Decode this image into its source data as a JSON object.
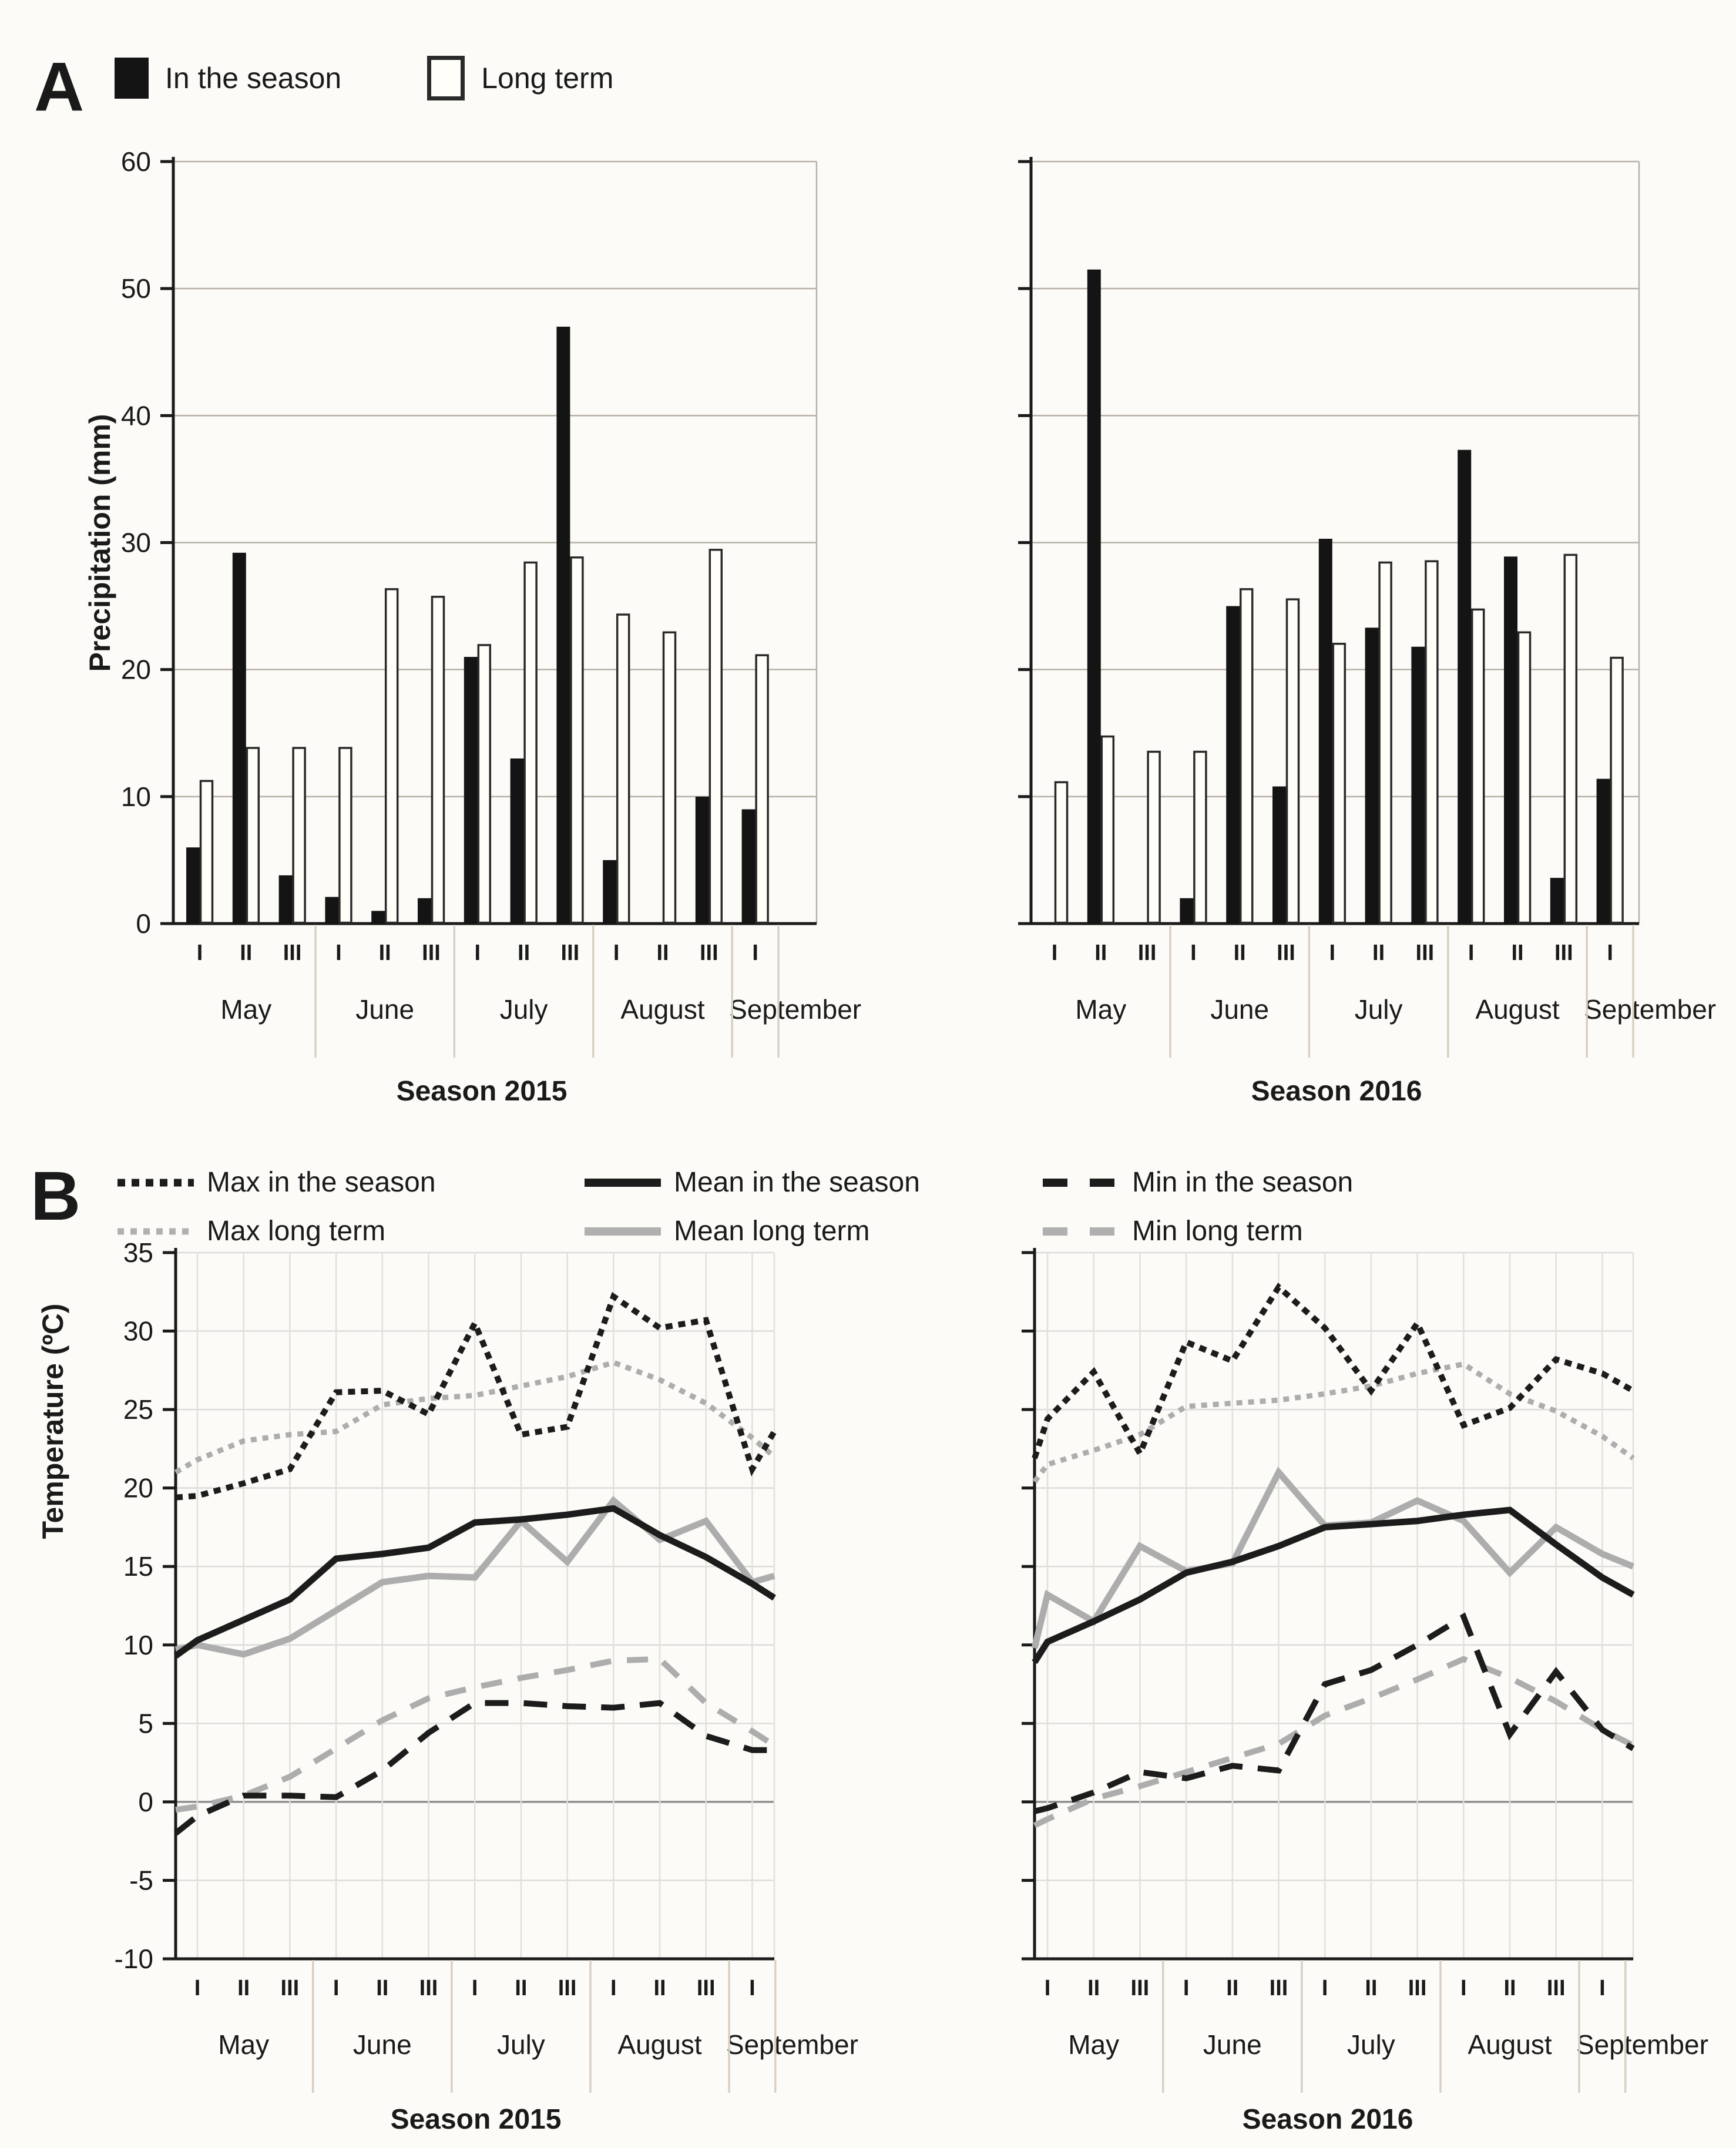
{
  "figure": {
    "panel_a_letter": "A",
    "panel_b_letter": "B"
  },
  "panel_a": {
    "legend": {
      "in_season": "In the season",
      "long_term": "Long term"
    },
    "ylabel": "Precipitation (mm)"
  },
  "panel_b": {
    "legend": {
      "max_season": "Max in the season",
      "mean_season": "Mean in the season",
      "min_season": "Min in the season",
      "max_longterm": "Max long term",
      "mean_longterm": "Mean long term",
      "min_longterm": "Min long term"
    },
    "ylabel": "Temperature (ºC)"
  },
  "chart_data": [
    {
      "type": "bar",
      "panel": "A",
      "title": "Season 2015",
      "ylabel": "Precipitation (mm)",
      "ylim": [
        0,
        60
      ],
      "yticks": [
        0,
        10,
        20,
        30,
        40,
        50,
        60
      ],
      "grid": "horizontal",
      "legend_position": "top-left",
      "categories": [
        "I",
        "II",
        "III",
        "I",
        "II",
        "III",
        "I",
        "II",
        "III",
        "I",
        "II",
        "III",
        "I"
      ],
      "months": [
        {
          "label": "May",
          "decades": 3
        },
        {
          "label": "June",
          "decades": 3
        },
        {
          "label": "July",
          "decades": 3
        },
        {
          "label": "August",
          "decades": 3
        },
        {
          "label": "September",
          "decades": 1
        }
      ],
      "series": [
        {
          "name": "In the season",
          "style": "filled-black",
          "values": [
            6,
            29.2,
            3.8,
            2.1,
            1,
            2,
            21,
            13,
            47,
            5,
            0,
            10,
            9
          ]
        },
        {
          "name": "Long term",
          "style": "outlined-white",
          "values": [
            11.3,
            13.9,
            13.9,
            13.9,
            26.4,
            25.8,
            22,
            28.5,
            28.9,
            24.4,
            23,
            29.5,
            21.2
          ]
        }
      ]
    },
    {
      "type": "bar",
      "panel": "A",
      "title": "Season 2016",
      "ylabel": "Precipitation (mm)",
      "ylim": [
        0,
        60
      ],
      "yticks": [
        0,
        10,
        20,
        30,
        40,
        50,
        60
      ],
      "grid": "horizontal",
      "categories": [
        "I",
        "II",
        "III",
        "I",
        "II",
        "III",
        "I",
        "II",
        "III",
        "I",
        "II",
        "III",
        "I"
      ],
      "months": [
        {
          "label": "May",
          "decades": 3
        },
        {
          "label": "June",
          "decades": 3
        },
        {
          "label": "July",
          "decades": 3
        },
        {
          "label": "August",
          "decades": 3
        },
        {
          "label": "September",
          "decades": 1
        }
      ],
      "series": [
        {
          "name": "In the season",
          "style": "filled-black",
          "values": [
            0,
            51.5,
            0,
            2,
            25,
            10.8,
            30.3,
            23.3,
            21.8,
            37.3,
            28.9,
            3.6,
            11.4
          ]
        },
        {
          "name": "Long term",
          "style": "outlined-white",
          "values": [
            11.2,
            14.8,
            13.6,
            13.6,
            26.4,
            25.6,
            22.1,
            28.5,
            28.6,
            24.8,
            23,
            29.1,
            21
          ]
        }
      ]
    },
    {
      "type": "line",
      "panel": "B",
      "title": "Season 2015",
      "ylabel": "Temperature (ºC)",
      "ylim": [
        -10,
        35
      ],
      "yticks": [
        -10,
        -5,
        0,
        5,
        10,
        15,
        20,
        25,
        30,
        35
      ],
      "grid": "both",
      "categories": [
        "I",
        "II",
        "III",
        "I",
        "II",
        "III",
        "I",
        "II",
        "III",
        "I",
        "II",
        "III",
        "I"
      ],
      "months": [
        {
          "label": "May",
          "decades": 3
        },
        {
          "label": "June",
          "decades": 3
        },
        {
          "label": "July",
          "decades": 3
        },
        {
          "label": "August",
          "decades": 3
        },
        {
          "label": "September",
          "decades": 1
        }
      ],
      "series": [
        {
          "name": "Max long term",
          "color": "gray",
          "style": "dotted",
          "edge_start": 21.0,
          "edge_end": 22.0,
          "values": [
            21.8,
            23.0,
            23.4,
            23.6,
            25.3,
            25.7,
            25.9,
            26.5,
            27.1,
            28.0,
            26.9,
            25.4,
            23.2
          ]
        },
        {
          "name": "Mean long term",
          "color": "gray",
          "style": "solid",
          "edge_start": 9.7,
          "edge_end": 14.4,
          "values": [
            10.0,
            9.4,
            10.4,
            12.2,
            14.0,
            14.4,
            14.3,
            17.9,
            15.3,
            19.2,
            16.7,
            17.9,
            14.0
          ]
        },
        {
          "name": "Min long term",
          "color": "gray",
          "style": "dashed",
          "edge_start": -0.5,
          "edge_end": 3.6,
          "values": [
            -0.3,
            0.4,
            1.6,
            3.4,
            5.2,
            6.6,
            7.3,
            7.9,
            8.4,
            9.0,
            9.1,
            6.3,
            4.5
          ]
        },
        {
          "name": "Max in the season",
          "color": "black",
          "style": "dotted",
          "edge_start": 19.4,
          "edge_end": 23.6,
          "values": [
            19.5,
            20.3,
            21.2,
            26.1,
            26.2,
            24.7,
            30.5,
            23.4,
            23.9,
            32.2,
            30.2,
            30.7,
            21.2
          ]
        },
        {
          "name": "Mean in the season",
          "color": "black",
          "style": "solid",
          "edge_start": 9.3,
          "edge_end": 13.0,
          "values": [
            10.3,
            11.6,
            12.9,
            15.5,
            15.8,
            16.2,
            17.8,
            18.0,
            18.3,
            18.7,
            17.0,
            15.6,
            13.9
          ]
        },
        {
          "name": "Min in the season",
          "color": "black",
          "style": "dashed",
          "edge_start": -2.0,
          "edge_end": 3.3,
          "values": [
            -0.9,
            0.4,
            0.4,
            0.3,
            2.0,
            4.4,
            6.3,
            6.3,
            6.1,
            6.0,
            6.3,
            4.2,
            3.3
          ]
        }
      ]
    },
    {
      "type": "line",
      "panel": "B",
      "title": "Season 2016",
      "ylabel": "Temperature (ºC)",
      "ylim": [
        -10,
        35
      ],
      "yticks": [
        -10,
        -5,
        0,
        5,
        10,
        15,
        20,
        25,
        30,
        35
      ],
      "grid": "both",
      "categories": [
        "I",
        "II",
        "III",
        "I",
        "II",
        "III",
        "I",
        "II",
        "III",
        "I",
        "II",
        "III",
        "I"
      ],
      "months": [
        {
          "label": "May",
          "decades": 3
        },
        {
          "label": "June",
          "decades": 3
        },
        {
          "label": "July",
          "decades": 3
        },
        {
          "label": "August",
          "decades": 3
        },
        {
          "label": "September",
          "decades": 1
        }
      ],
      "series": [
        {
          "name": "Max long term",
          "color": "gray",
          "style": "dotted",
          "edge_start": 20.4,
          "edge_end": 21.9,
          "values": [
            21.5,
            22.4,
            23.4,
            25.2,
            25.4,
            25.6,
            26.0,
            26.5,
            27.3,
            27.9,
            26.0,
            24.9,
            23.3
          ]
        },
        {
          "name": "Mean long term",
          "color": "gray",
          "style": "solid",
          "edge_start": 9.8,
          "edge_end": 15.0,
          "values": [
            13.2,
            11.5,
            16.3,
            14.7,
            15.2,
            21.0,
            17.6,
            17.8,
            19.2,
            17.9,
            14.6,
            17.5,
            15.8
          ]
        },
        {
          "name": "Min long term",
          "color": "gray",
          "style": "dashed",
          "edge_start": -1.5,
          "edge_end": 3.6,
          "values": [
            -1.1,
            0.2,
            1.0,
            1.9,
            2.8,
            3.7,
            5.5,
            6.6,
            7.8,
            9.1,
            7.9,
            6.4,
            4.6
          ]
        },
        {
          "name": "Max in the season",
          "color": "black",
          "style": "dotted",
          "edge_start": 21.9,
          "edge_end": 26.2,
          "values": [
            24.4,
            27.4,
            22.2,
            29.3,
            28.1,
            32.8,
            30.2,
            26.2,
            30.5,
            24.0,
            25.1,
            28.2,
            27.3
          ]
        },
        {
          "name": "Mean in the season",
          "color": "black",
          "style": "solid",
          "edge_start": 8.9,
          "edge_end": 13.2,
          "values": [
            10.2,
            11.5,
            12.9,
            14.6,
            15.3,
            16.3,
            17.5,
            17.7,
            17.9,
            18.3,
            18.6,
            16.4,
            14.3
          ]
        },
        {
          "name": "Min in the season",
          "color": "black",
          "style": "dashed",
          "edge_start": -0.6,
          "edge_end": 3.4,
          "values": [
            -0.4,
            0.6,
            1.9,
            1.5,
            2.3,
            2.0,
            7.5,
            8.4,
            10.0,
            11.8,
            4.3,
            8.3,
            4.6
          ]
        }
      ]
    }
  ]
}
